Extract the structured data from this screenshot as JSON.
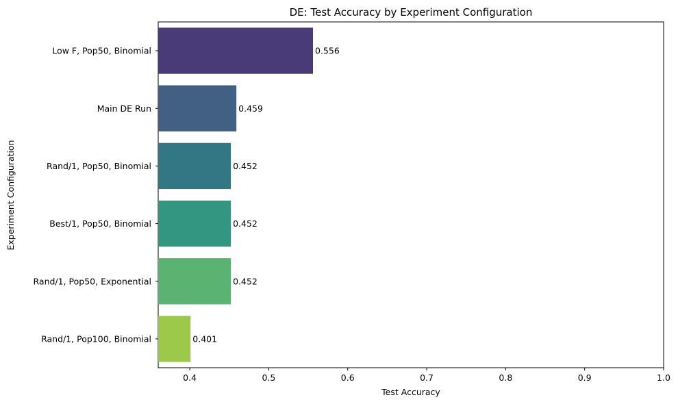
{
  "chart_data": {
    "type": "bar",
    "orientation": "horizontal",
    "title": "DE: Test Accuracy by Experiment Configuration",
    "xlabel": "Test Accuracy",
    "ylabel": "Experiment Configuration",
    "xlim": [
      0.36,
      1.0
    ],
    "xticks": [
      "0.4",
      "0.5",
      "0.6",
      "0.7",
      "0.8",
      "0.9",
      "1.0"
    ],
    "categories": [
      "Low F, Pop50, Binomial",
      "Main DE Run",
      "Rand/1, Pop50, Binomial",
      "Best/1, Pop50, Binomial",
      "Rand/1, Pop50, Exponential",
      "Rand/1, Pop100, Binomial"
    ],
    "values": [
      0.556,
      0.459,
      0.452,
      0.452,
      0.452,
      0.401
    ],
    "value_labels": [
      "0.556",
      "0.459",
      "0.452",
      "0.452",
      "0.452",
      "0.401"
    ],
    "colors": [
      "#493a78",
      "#416083",
      "#337785",
      "#329680",
      "#5bb371",
      "#9dc94a"
    ],
    "grid": false,
    "legend": "none"
  }
}
